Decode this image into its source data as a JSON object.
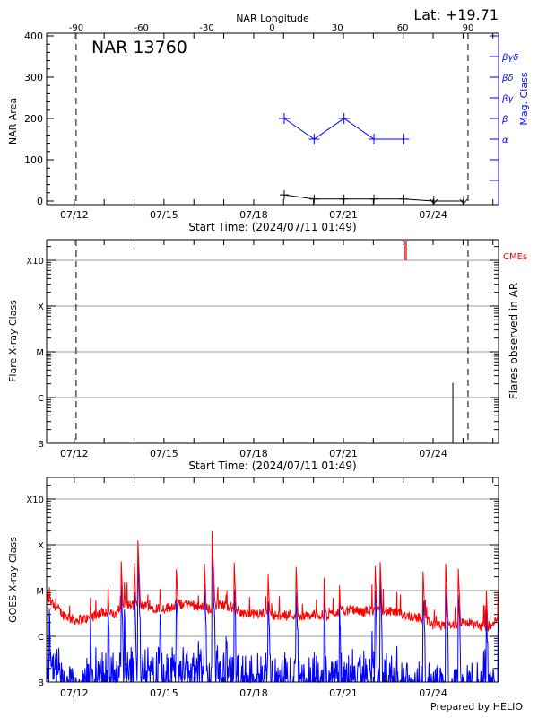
{
  "header": {
    "latitude": "Lat: +19.71",
    "region_title": "NAR 13760",
    "footer": "Prepared by HELIO"
  },
  "colors": {
    "area": "#000000",
    "mag_class": "#0000ff",
    "cme": "#ff0000",
    "goes_long": "#ff0000",
    "goes_short": "#0000ff",
    "grid": "#999999"
  },
  "chart_data": [
    {
      "type": "line",
      "title": "NAR 13760",
      "ylabel": "NAR Area",
      "y2label": "Mag. Class",
      "top_xlabel": "NAR Longitude",
      "xlabel": "Start Time: (2024/07/11 01:49)",
      "xlim": [
        "2024-07-11T01:49",
        "2024-07-26T04:30"
      ],
      "xtick_labels": [
        {
          "t": "2024-07-12T00:00",
          "label": "07/12"
        },
        {
          "t": "2024-07-15T00:00",
          "label": "07/15"
        },
        {
          "t": "2024-07-18T00:00",
          "label": "07/18"
        },
        {
          "t": "2024-07-21T00:00",
          "label": "07/21"
        },
        {
          "t": "2024-07-24T00:00",
          "label": "07/24"
        }
      ],
      "ylim": [
        0,
        400
      ],
      "ytick_labels": [
        "0",
        "100",
        "200",
        "300",
        "400"
      ],
      "longitude_ticks": [
        "-90",
        "-60",
        "-30",
        "0",
        "30",
        "60",
        "90"
      ],
      "limb_times": [
        "2024-07-12T01:30",
        "2024-07-25T04:00"
      ],
      "mag_class_ticks": [
        {
          "area": 150,
          "label": "α"
        },
        {
          "area": 200,
          "label": "β"
        },
        {
          "area": 250,
          "label": "βγ"
        },
        {
          "area": 300,
          "label": "βδ"
        },
        {
          "area": 350,
          "label": "βγδ"
        }
      ],
      "area_series": [
        {
          "t": "2024-07-19T00:30",
          "area": 15
        },
        {
          "t": "2024-07-20T00:30",
          "area": 5
        },
        {
          "t": "2024-07-21T00:30",
          "area": 5
        },
        {
          "t": "2024-07-22T00:30",
          "area": 5
        },
        {
          "t": "2024-07-23T00:30",
          "area": 5
        },
        {
          "t": "2024-07-24T00:30",
          "area": 0,
          "upper_limit": true
        },
        {
          "t": "2024-07-25T00:30",
          "area": 0,
          "upper_limit": true
        }
      ],
      "mag_class_series": [
        {
          "t": "2024-07-19T00:30",
          "class": "β"
        },
        {
          "t": "2024-07-20T00:30",
          "class": "α"
        },
        {
          "t": "2024-07-21T00:30",
          "class": "β"
        },
        {
          "t": "2024-07-22T00:30",
          "class": "α"
        },
        {
          "t": "2024-07-23T00:30",
          "class": "α"
        }
      ]
    },
    {
      "type": "bar",
      "ylabel": "Flare X-ray Class",
      "y2label": "Flares observed in AR",
      "xlabel": "Start Time: (2024/07/11 01:49)",
      "yscale": "log",
      "ylim_flux": [
        1e-07,
        0.0028
      ],
      "class_levels": [
        {
          "flux": 1e-07,
          "label": "B"
        },
        {
          "flux": 1e-06,
          "label": "C"
        },
        {
          "flux": 1e-05,
          "label": "M"
        },
        {
          "flux": 0.0001,
          "label": "X"
        },
        {
          "flux": 0.001,
          "label": "X10"
        }
      ],
      "cme_label": "CMEs",
      "cmes": [
        "2024-07-23T01:30",
        "2024-07-23T02:30"
      ],
      "flares": [
        {
          "t": "2024-07-24T15:50",
          "flux": 2.1e-06,
          "class": "C2.1"
        }
      ]
    },
    {
      "type": "line",
      "ylabel": "GOES X-ray Class",
      "yscale": "log",
      "ylim_flux": [
        1e-07,
        0.0028
      ],
      "background_long": [
        [
          "2024-07-11T01:49",
          6.5e-06
        ],
        [
          "2024-07-11T08:00",
          4.5e-06
        ],
        [
          "2024-07-11T15:00",
          2.8e-06
        ],
        [
          "2024-07-12T00:00",
          2.1e-06
        ],
        [
          "2024-07-12T12:00",
          2.3e-06
        ],
        [
          "2024-07-13T00:00",
          3.3e-06
        ],
        [
          "2024-07-13T10:00",
          2.6e-06
        ],
        [
          "2024-07-13T13:00",
          4.6e-06
        ],
        [
          "2024-07-14T00:00",
          4.4e-06
        ],
        [
          "2024-07-14T14:00",
          4e-06
        ],
        [
          "2024-07-15T00:00",
          3.8e-06
        ],
        [
          "2024-07-15T12:00",
          4.7e-06
        ],
        [
          "2024-07-15T23:00",
          4.7e-06
        ],
        [
          "2024-07-16T06:00",
          4e-06
        ],
        [
          "2024-07-16T13:00",
          3.7e-06
        ],
        [
          "2024-07-16T21:00",
          4.7e-06
        ],
        [
          "2024-07-17T07:00",
          4e-06
        ],
        [
          "2024-07-17T15:00",
          3e-06
        ],
        [
          "2024-07-17T22:00",
          2.8e-06
        ],
        [
          "2024-07-18T09:00",
          3e-06
        ],
        [
          "2024-07-18T19:00",
          2.6e-06
        ],
        [
          "2024-07-19T06:00",
          2.8e-06
        ],
        [
          "2024-07-19T17:00",
          2.4e-06
        ],
        [
          "2024-07-20T00:00",
          2.8e-06
        ],
        [
          "2024-07-20T11:00",
          2.6e-06
        ],
        [
          "2024-07-20T18:00",
          3.2e-06
        ],
        [
          "2024-07-21T05:00",
          3.5e-06
        ],
        [
          "2024-07-21T16:00",
          3.2e-06
        ],
        [
          "2024-07-22T03:00",
          3.7e-06
        ],
        [
          "2024-07-22T13:00",
          3.2e-06
        ],
        [
          "2024-07-23T00:00",
          2.8e-06
        ],
        [
          "2024-07-23T11:00",
          2.4e-06
        ],
        [
          "2024-07-23T18:00",
          2.2e-06
        ],
        [
          "2024-07-24T01:00",
          1.6e-06
        ],
        [
          "2024-07-24T09:00",
          1.5e-06
        ],
        [
          "2024-07-24T16:00",
          1.6e-06
        ],
        [
          "2024-07-24T23:00",
          1.9e-06
        ],
        [
          "2024-07-25T06:00",
          1.8e-06
        ],
        [
          "2024-07-25T17:00",
          1.5e-06
        ],
        [
          "2024-07-26T00:00",
          1.6e-06
        ],
        [
          "2024-07-26T04:30",
          3e-06
        ]
      ],
      "peaks_long": [
        [
          "2024-07-11T04:00",
          1.2e-05
        ],
        [
          "2024-07-12T13:00",
          7e-06
        ],
        [
          "2024-07-13T03:00",
          1.5e-05
        ],
        [
          "2024-07-13T13:30",
          5.6e-05
        ],
        [
          "2024-07-13T16:00",
          2.1e-05
        ],
        [
          "2024-07-14T00:00",
          5.3e-05
        ],
        [
          "2024-07-14T03:00",
          0.00014
        ],
        [
          "2024-07-14T21:00",
          1.1e-05
        ],
        [
          "2024-07-15T10:00",
          2.9e-05
        ],
        [
          "2024-07-16T08:30",
          3.9e-05
        ],
        [
          "2024-07-16T14:30",
          0.00022
        ],
        [
          "2024-07-17T08:10",
          5.3e-05
        ],
        [
          "2024-07-18T11:30",
          2.4e-05
        ],
        [
          "2024-07-19T10:00",
          3.4e-05
        ],
        [
          "2024-07-20T08:30",
          1.9e-05
        ],
        [
          "2024-07-20T20:40",
          1.7e-05
        ],
        [
          "2024-07-22T01:30",
          3.4e-05
        ],
        [
          "2024-07-22T05:30",
          4.2e-05
        ],
        [
          "2024-07-23T16:00",
          2.6e-05
        ],
        [
          "2024-07-24T10:10",
          3.9e-05
        ],
        [
          "2024-07-24T20:10",
          3.3e-05
        ],
        [
          "2024-07-25T18:30",
          1.4e-05
        ],
        [
          "2024-07-26T04:00",
          1.2e-05
        ]
      ]
    }
  ]
}
